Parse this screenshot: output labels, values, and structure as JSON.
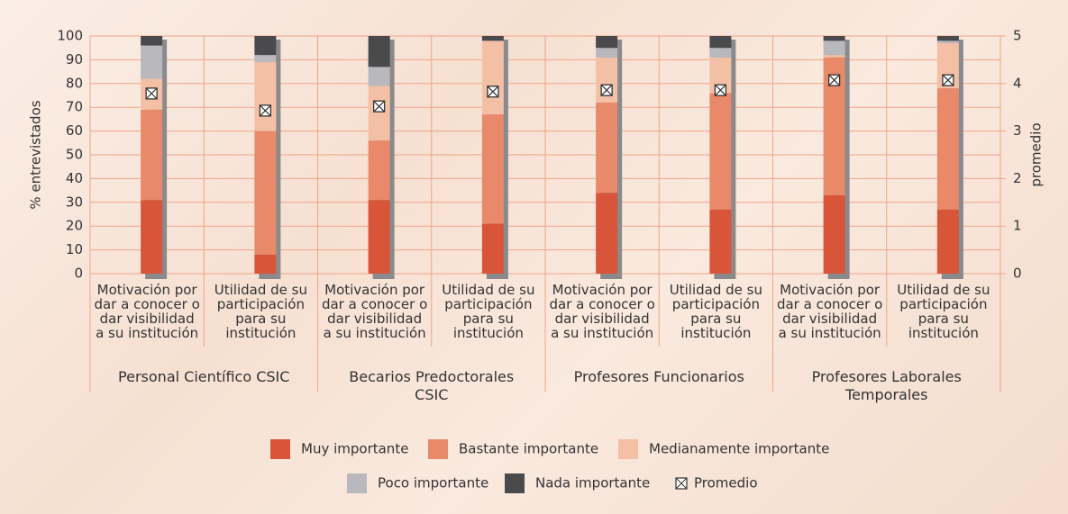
{
  "chart_data": {
    "type": "bar",
    "stacked": true,
    "ylabel": "% entrevistados",
    "y2label": "promedio",
    "ylim": [
      0,
      100
    ],
    "yticks": [
      0,
      10,
      20,
      30,
      40,
      50,
      60,
      70,
      80,
      90,
      100
    ],
    "y2lim": [
      0,
      5
    ],
    "y2ticks": [
      0,
      1,
      2,
      3,
      4,
      5
    ],
    "grid": true,
    "categories": [
      "Motivación por\ndar a conocer o\ndar visibilidad\na su institución",
      "Utilidad de su\nparticipación\npara su\ninstitución",
      "Motivación por\ndar a conocer o\ndar visibilidad\na su institución",
      "Utilidad de su\nparticipación\npara su\ninstitución",
      "Motivación por\ndar a conocer o\ndar visibilidad\na su institución",
      "Utilidad de su\nparticipación\npara su\ninstitución",
      "Motivación por\ndar a conocer o\ndar visibilidad\na su institución",
      "Utilidad de su\nparticipación\npara su\ninstitución"
    ],
    "groups": [
      "Personal Científico CSIC",
      "Becarios Predoctorales CSIC",
      "Profesores Funcionarios",
      "Profesores Laborales Temporales"
    ],
    "series": [
      {
        "name": "Muy importante",
        "color": "#d9553a",
        "values": [
          31,
          8,
          31,
          21,
          34,
          27,
          33,
          27
        ]
      },
      {
        "name": "Bastante importante",
        "color": "#e8896a",
        "values": [
          38,
          52,
          25,
          46,
          38,
          49,
          58,
          51
        ]
      },
      {
        "name": "Medianamente importante",
        "color": "#f4c0a5",
        "values": [
          13,
          29,
          23,
          31,
          19,
          15,
          1,
          19
        ]
      },
      {
        "name": "Poco importante",
        "color": "#b8b8bd",
        "values": [
          14,
          3,
          8,
          0,
          4,
          4,
          6,
          1
        ]
      },
      {
        "name": "Nada importante",
        "color": "#4a4a4d",
        "values": [
          4,
          8,
          13,
          2,
          5,
          5,
          2,
          2
        ]
      },
      {
        "name": "Promedio",
        "axis": "y2",
        "color": "#333333",
        "values": [
          3.79,
          3.43,
          3.52,
          3.83,
          3.86,
          3.86,
          4.07,
          4.07
        ]
      }
    ]
  }
}
